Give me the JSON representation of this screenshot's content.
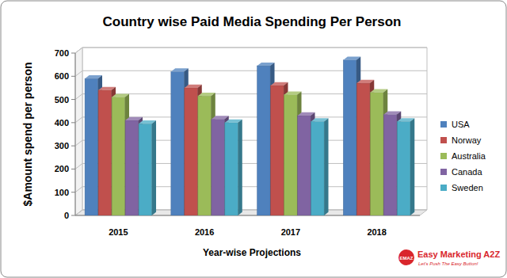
{
  "chart_data": {
    "type": "bar",
    "title": "Country wise Paid Media Spending Per Person",
    "x_label": "Year-wise Projections",
    "y_label": "$Amount spend per person",
    "categories": [
      "2015",
      "2016",
      "2017",
      "2018"
    ],
    "series": [
      {
        "name": "USA",
        "color": "#4f81bd",
        "values": [
          590,
          620,
          645,
          670
        ]
      },
      {
        "name": "Norway",
        "color": "#c0504d",
        "values": [
          540,
          550,
          560,
          570
        ]
      },
      {
        "name": "Australia",
        "color": "#9bbb59",
        "values": [
          510,
          515,
          520,
          530
        ]
      },
      {
        "name": "Canada",
        "color": "#8064a2",
        "values": [
          410,
          415,
          430,
          435
        ]
      },
      {
        "name": "Sweden",
        "color": "#4bacc6",
        "values": [
          395,
          400,
          405,
          405
        ]
      }
    ],
    "ylim": [
      0,
      700
    ],
    "yticks": [
      0,
      100,
      200,
      300,
      400,
      500,
      600,
      700
    ],
    "grid": true,
    "legend": "right",
    "annotations": [
      "EMAZ",
      "Easy Marketing A2Z",
      "Let's Push The Easy Button!"
    ]
  }
}
